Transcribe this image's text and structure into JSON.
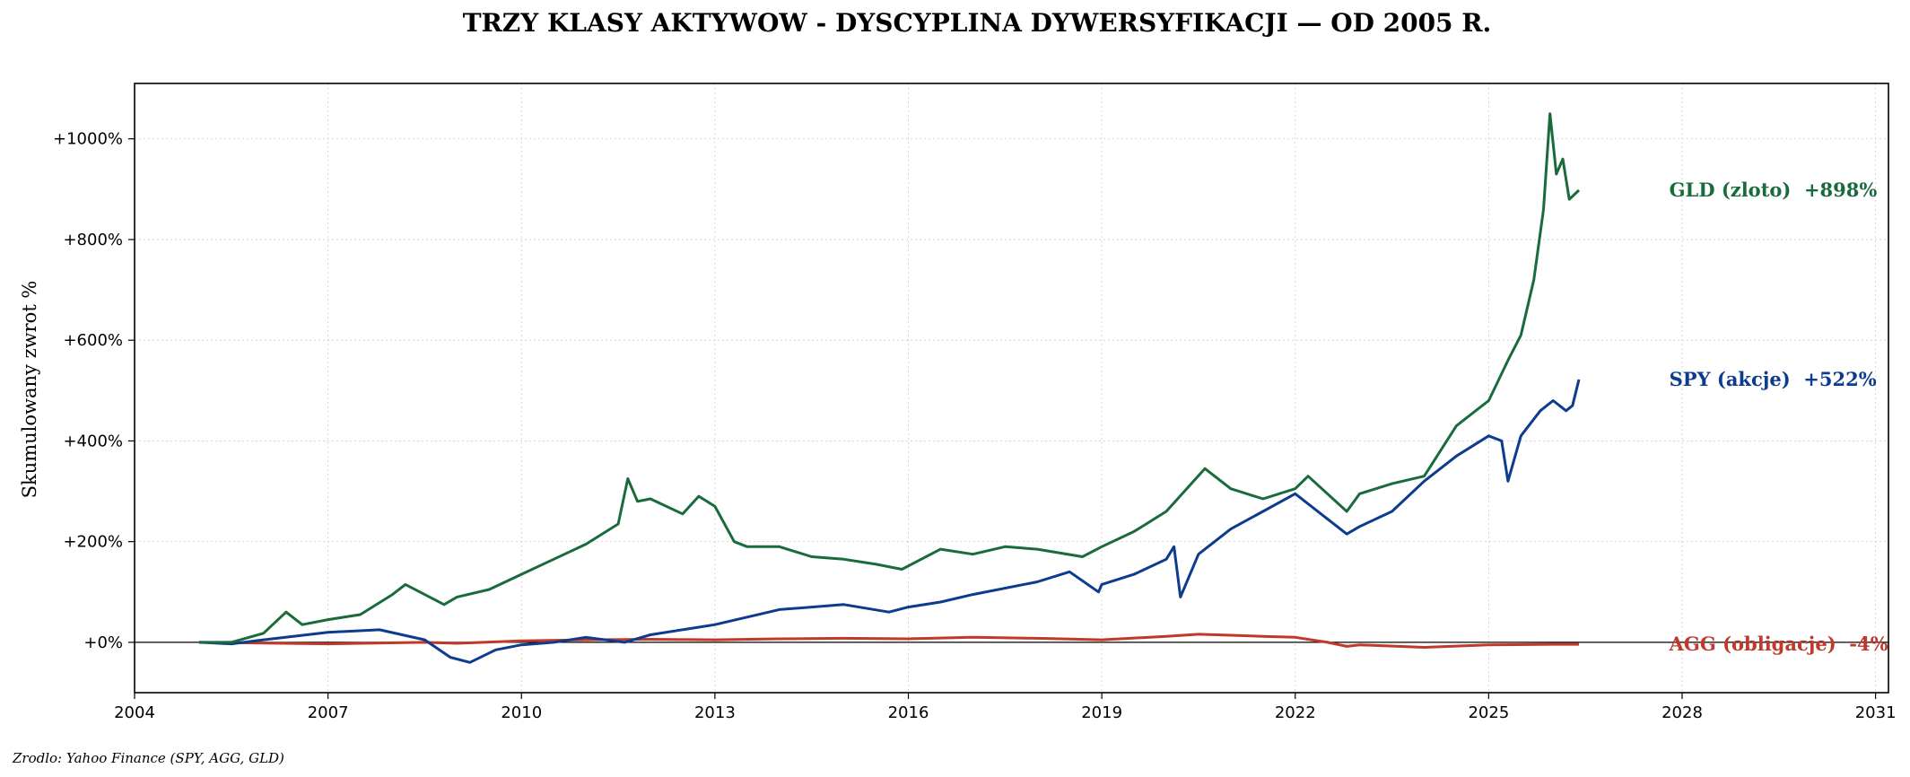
{
  "chart_data": {
    "type": "line",
    "title": "TRZY KLASY AKTYWOW - DYSCYPLINA DYWERSYFIKACJI — OD 2005 R.",
    "ylabel": "Skumulowany zwrot %",
    "xlabel": "",
    "xlim": [
      2004.0,
      2031.2
    ],
    "ylim": [
      -100,
      1110
    ],
    "x_ticks": [
      2004,
      2007,
      2010,
      2013,
      2016,
      2019,
      2022,
      2025,
      2028,
      2031
    ],
    "x_tick_labels": [
      "2004",
      "2007",
      "2010",
      "2013",
      "2016",
      "2019",
      "2022",
      "2025",
      "2028",
      "2031"
    ],
    "y_ticks": [
      0,
      200,
      400,
      600,
      800,
      1000
    ],
    "y_tick_labels": [
      "+0%",
      "+200%",
      "+400%",
      "+600%",
      "+800%",
      "+1000%"
    ],
    "grid": true,
    "reference_line": 0,
    "series": [
      {
        "name": "GLD (zloto)",
        "end_label": "GLD (zloto)  +898%",
        "color": "#1a6b3c",
        "x": [
          2005.0,
          2005.5,
          2006.0,
          2006.35,
          2006.6,
          2007.0,
          2007.5,
          2008.0,
          2008.2,
          2008.8,
          2009.0,
          2009.5,
          2010.0,
          2010.5,
          2011.0,
          2011.5,
          2011.65,
          2011.8,
          2012.0,
          2012.5,
          2012.75,
          2013.0,
          2013.3,
          2013.5,
          2014.0,
          2014.5,
          2015.0,
          2015.5,
          2015.9,
          2016.5,
          2017.0,
          2017.5,
          2018.0,
          2018.7,
          2019.0,
          2019.5,
          2020.0,
          2020.6,
          2021.0,
          2021.5,
          2022.0,
          2022.2,
          2022.8,
          2023.0,
          2023.5,
          2024.0,
          2024.5,
          2025.0,
          2025.3,
          2025.5,
          2025.7,
          2025.85,
          2025.95,
          2026.05,
          2026.15,
          2026.25,
          2026.4
        ],
        "values": [
          0,
          0,
          18,
          60,
          35,
          45,
          55,
          95,
          115,
          75,
          90,
          105,
          135,
          165,
          195,
          235,
          325,
          280,
          285,
          255,
          290,
          270,
          200,
          190,
          190,
          170,
          165,
          155,
          145,
          185,
          175,
          190,
          185,
          170,
          190,
          220,
          260,
          345,
          305,
          285,
          305,
          330,
          260,
          295,
          315,
          330,
          430,
          480,
          560,
          610,
          720,
          860,
          1050,
          930,
          960,
          880,
          898
        ]
      },
      {
        "name": "SPY (akcje)",
        "end_label": "SPY (akcje)  +522%",
        "color": "#0d3b8e",
        "x": [
          2005.0,
          2005.5,
          2006.0,
          2007.0,
          2007.8,
          2008.5,
          2008.9,
          2009.2,
          2009.6,
          2010.0,
          2010.5,
          2011.0,
          2011.6,
          2012.0,
          2013.0,
          2014.0,
          2015.0,
          2015.7,
          2016.0,
          2016.5,
          2017.0,
          2018.0,
          2018.5,
          2018.95,
          2019.0,
          2019.5,
          2020.0,
          2020.12,
          2020.22,
          2020.5,
          2021.0,
          2021.5,
          2022.0,
          2022.5,
          2022.8,
          2023.0,
          2023.5,
          2024.0,
          2024.5,
          2025.0,
          2025.2,
          2025.3,
          2025.5,
          2025.8,
          2026.0,
          2026.2,
          2026.3,
          2026.4
        ],
        "values": [
          0,
          -3,
          5,
          20,
          25,
          5,
          -30,
          -40,
          -15,
          -5,
          0,
          10,
          0,
          15,
          35,
          65,
          75,
          60,
          70,
          80,
          95,
          120,
          140,
          100,
          115,
          135,
          165,
          190,
          90,
          175,
          225,
          260,
          295,
          245,
          215,
          230,
          260,
          320,
          370,
          410,
          400,
          320,
          410,
          460,
          480,
          460,
          470,
          522
        ]
      },
      {
        "name": "AGG (obligacje)",
        "end_label": "AGG (obligacje)  -4%",
        "color": "#c0392b",
        "x": [
          2005.0,
          2007.0,
          2008.5,
          2009.0,
          2010.0,
          2011.0,
          2012.0,
          2013.0,
          2014.0,
          2015.0,
          2016.0,
          2017.0,
          2018.0,
          2019.0,
          2020.0,
          2020.5,
          2021.0,
          2021.5,
          2022.0,
          2022.5,
          2022.8,
          2023.0,
          2024.0,
          2025.0,
          2026.0,
          2026.4
        ],
        "values": [
          0,
          -3,
          0,
          -2,
          3,
          5,
          6,
          5,
          7,
          8,
          7,
          10,
          8,
          5,
          12,
          16,
          14,
          12,
          10,
          0,
          -8,
          -5,
          -10,
          -5,
          -4,
          -4
        ]
      }
    ]
  },
  "source_note": "Zrodlo: Yahoo Finance (SPY, AGG, GLD)"
}
